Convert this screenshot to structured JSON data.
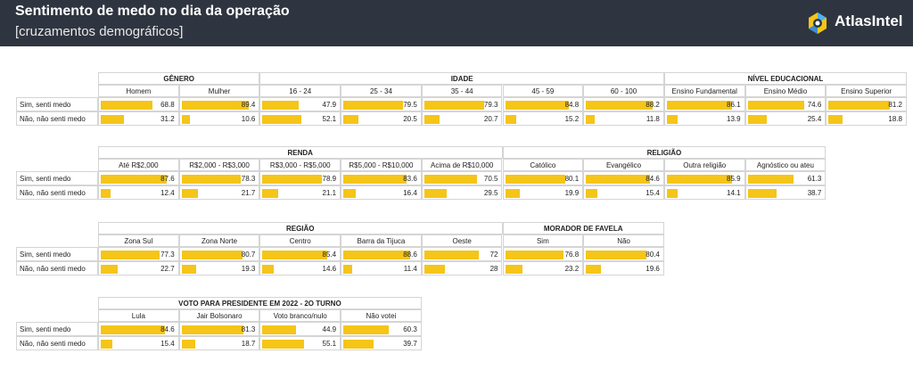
{
  "header": {
    "title": "Sentimento de medo no dia da operação",
    "subtitle": "[cruzamentos demográficos]",
    "brand": "AtlasIntel"
  },
  "colors": {
    "header_bg": "#2f3540",
    "bar": "#f5c518",
    "border": "#d5d5d5"
  },
  "chart_data": {
    "type": "table",
    "title": "Sentimento de medo no dia da operação",
    "subtitle": "[cruzamentos demográficos]",
    "rows": [
      "Sim, senti medo",
      "Não, não senti medo"
    ],
    "panels": [
      {
        "groups": [
          {
            "name": "GÊNERO",
            "categories": [
              {
                "label": "Homem",
                "values": [
                  68.8,
                  31.2
                ]
              },
              {
                "label": "Mulher",
                "values": [
                  89.4,
                  10.6
                ]
              }
            ]
          },
          {
            "name": "IDADE",
            "categories": [
              {
                "label": "16 - 24",
                "values": [
                  47.9,
                  52.1
                ]
              },
              {
                "label": "25 - 34",
                "values": [
                  79.5,
                  20.5
                ]
              },
              {
                "label": "35 - 44",
                "values": [
                  79.3,
                  20.7
                ]
              },
              {
                "label": "45 - 59",
                "values": [
                  84.8,
                  15.2
                ]
              },
              {
                "label": "60 - 100",
                "values": [
                  88.2,
                  11.8
                ]
              }
            ]
          },
          {
            "name": "NÍVEL EDUCACIONAL",
            "categories": [
              {
                "label": "Ensino Fundamental",
                "values": [
                  86.1,
                  13.9
                ]
              },
              {
                "label": "Ensino Médio",
                "values": [
                  74.6,
                  25.4
                ]
              },
              {
                "label": "Ensino Superior",
                "values": [
                  81.2,
                  18.8
                ]
              }
            ]
          }
        ]
      },
      {
        "groups": [
          {
            "name": "RENDA",
            "categories": [
              {
                "label": "Até R$2,000",
                "values": [
                  87.6,
                  12.4
                ]
              },
              {
                "label": "R$2,000 - R$3,000",
                "values": [
                  78.3,
                  21.7
                ]
              },
              {
                "label": "R$3,000 - R$5,000",
                "values": [
                  78.9,
                  21.1
                ]
              },
              {
                "label": "R$5,000 - R$10,000",
                "values": [
                  83.6,
                  16.4
                ]
              },
              {
                "label": "Acima de R$10,000",
                "values": [
                  70.5,
                  29.5
                ]
              }
            ]
          },
          {
            "name": "RELIGIÃO",
            "categories": [
              {
                "label": "Católico",
                "values": [
                  80.1,
                  19.9
                ]
              },
              {
                "label": "Evangélico",
                "values": [
                  84.6,
                  15.4
                ]
              },
              {
                "label": "Outra religião",
                "values": [
                  85.9,
                  14.1
                ]
              },
              {
                "label": "Agnóstico ou ateu",
                "values": [
                  61.3,
                  38.7
                ]
              }
            ]
          }
        ]
      },
      {
        "groups": [
          {
            "name": "REGIÃO",
            "categories": [
              {
                "label": "Zona Sul",
                "values": [
                  77.3,
                  22.7
                ]
              },
              {
                "label": "Zona Norte",
                "values": [
                  80.7,
                  19.3
                ]
              },
              {
                "label": "Centro",
                "values": [
                  85.4,
                  14.6
                ]
              },
              {
                "label": "Barra da Tijuca",
                "values": [
                  88.6,
                  11.4
                ]
              },
              {
                "label": "Oeste",
                "values": [
                  72,
                  28
                ]
              }
            ]
          },
          {
            "name": "MORADOR DE FAVELA",
            "categories": [
              {
                "label": "Sim",
                "values": [
                  76.8,
                  23.2
                ]
              },
              {
                "label": "Não",
                "values": [
                  80.4,
                  19.6
                ]
              }
            ]
          }
        ]
      },
      {
        "groups": [
          {
            "name": "VOTO PARA PRESIDENTE EM 2022 - 2O TURNO",
            "categories": [
              {
                "label": "Lula",
                "values": [
                  84.6,
                  15.4
                ]
              },
              {
                "label": "Jair Bolsonaro",
                "values": [
                  81.3,
                  18.7
                ]
              },
              {
                "label": "Voto branco/nulo",
                "values": [
                  44.9,
                  55.1
                ]
              },
              {
                "label": "Não votei",
                "values": [
                  60.3,
                  39.7
                ]
              }
            ]
          }
        ]
      }
    ],
    "value_range": [
      0,
      100
    ]
  }
}
